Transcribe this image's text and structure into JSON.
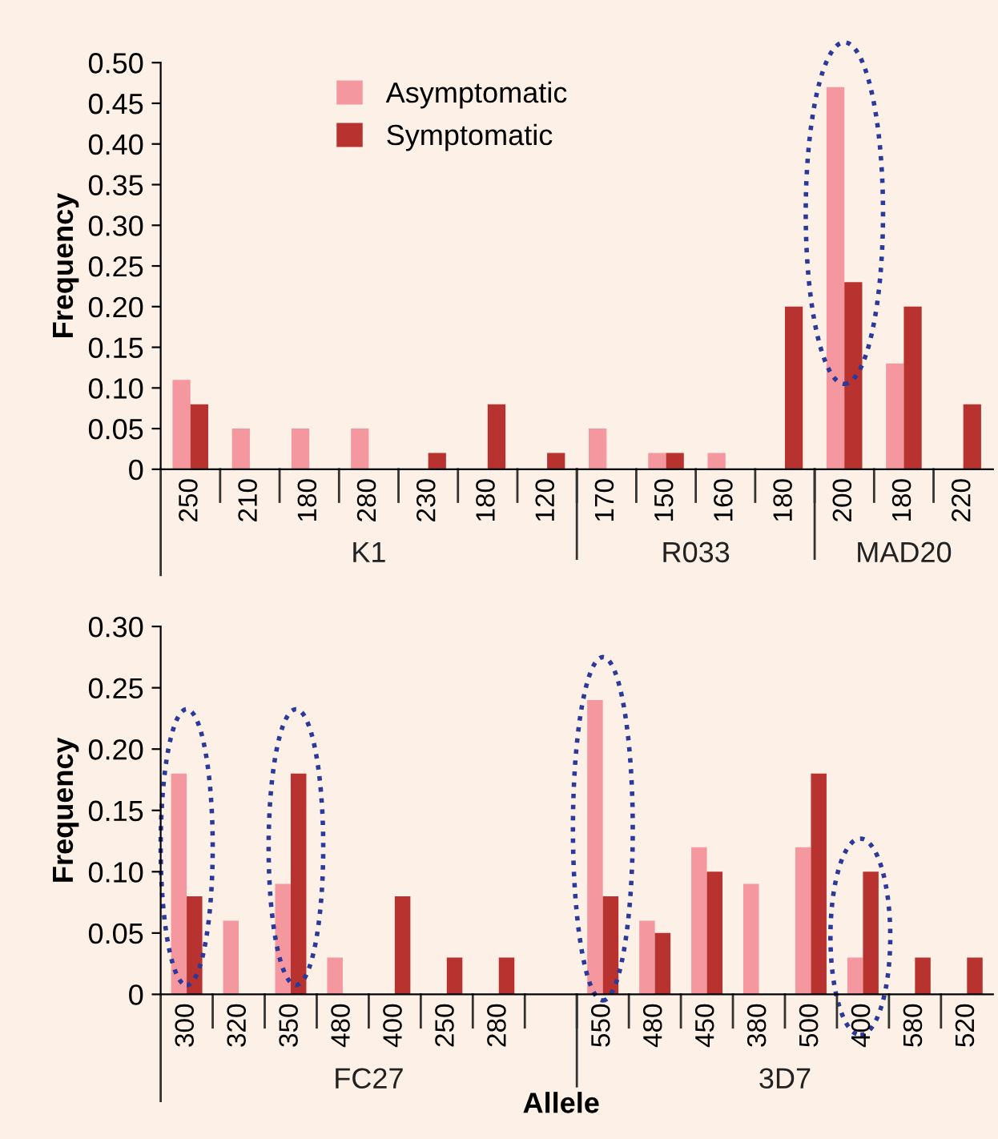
{
  "chart_data": [
    {
      "type": "bar",
      "ylabel": "Frequency",
      "categories": [
        "250",
        "210",
        "180",
        "280",
        "230",
        "180",
        "120",
        "170",
        "150",
        "160",
        "180",
        "200",
        "180",
        "220"
      ],
      "series": [
        {
          "name": "Asymptomatic",
          "color": "#f4979f",
          "values": [
            0.11,
            0.05,
            0.05,
            0.05,
            0,
            0,
            0,
            0.05,
            0.02,
            0.02,
            0,
            0.47,
            0.13,
            0
          ]
        },
        {
          "name": "Symptomatic",
          "color": "#b83230",
          "values": [
            0.08,
            0,
            0,
            0,
            0.02,
            0.08,
            0.02,
            0,
            0.02,
            0,
            0.2,
            0.23,
            0.2,
            0.08
          ]
        }
      ],
      "annotations": [
        "K1",
        "R033",
        "MAD20"
      ],
      "ylim": [
        0,
        0.5
      ],
      "yticks": [
        0,
        0.05,
        {
          "value": 0.1,
          "label": "0.10"
        },
        0.15,
        {
          "value": 0.2,
          "label": "0.20"
        },
        0.25,
        {
          "value": 0.3,
          "label": "0.30"
        },
        0.35,
        {
          "value": 0.4,
          "label": "0.40"
        },
        0.45,
        {
          "value": 0.5,
          "label": "0.50"
        }
      ],
      "legend": "top",
      "grid": false
    },
    {
      "type": "bar",
      "ylabel": "Frequency",
      "xlabel": "Allele",
      "categories": [
        "300",
        "320",
        "350",
        "480",
        "400",
        "250",
        "280",
        null,
        "550",
        "480",
        "450",
        "380",
        "500",
        "400",
        "580",
        "520"
      ],
      "series": [
        {
          "color": "#f4979f",
          "values": [
            0.18,
            0.06,
            0.09,
            0.03,
            0,
            0,
            0,
            null,
            0.24,
            0.06,
            0.12,
            0.09,
            0.12,
            0.03,
            0,
            0
          ]
        },
        {
          "color": "#b83230",
          "values": [
            0.08,
            0,
            0.18,
            0,
            0.08,
            0.03,
            0.03,
            null,
            0.08,
            0.05,
            0.1,
            0,
            0.18,
            0.1,
            0.03,
            0.03
          ]
        }
      ],
      "annotations": [
        "FC27",
        "3D7"
      ],
      "ylim": [
        0,
        0.3
      ],
      "yticks": [
        0,
        0.05,
        {
          "value": 0.1,
          "label": "0.10"
        },
        0.15,
        {
          "value": 0.2,
          "label": "0.20"
        },
        0.25,
        {
          "value": 0.3,
          "label": "0.30"
        }
      ],
      "grid": false
    }
  ]
}
